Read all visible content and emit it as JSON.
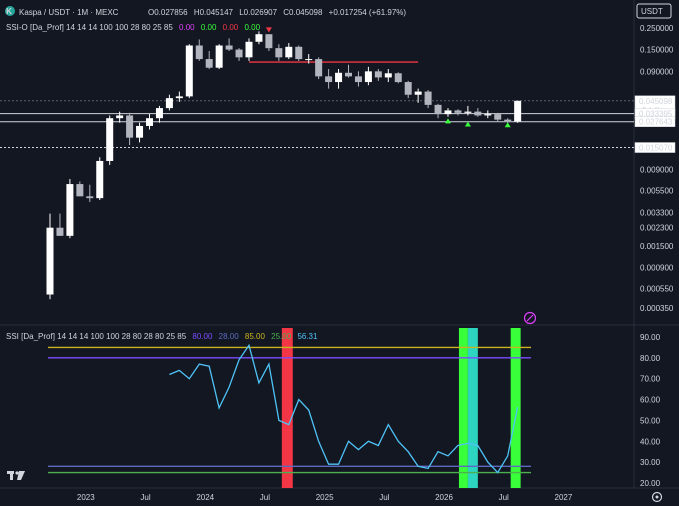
{
  "header": {
    "symbol": "Kaspa / USDT · 1M · MEXC",
    "ohlc": {
      "o": "O0.027856",
      "h": "H0.045147",
      "l": "L0.026907",
      "c": "C0.045098",
      "chg": "+0.017254 (+61.97%)"
    },
    "indicator_label": "SSI-O [Da_Prof] 14 14 14 100 100 28 80 25 85",
    "indicator_values": [
      "0.00",
      "0.00",
      "0.00",
      "0.00"
    ],
    "currency": "USDT"
  },
  "colors": {
    "bg": "#131722",
    "up": "#ffffff",
    "down": "#b2b5be",
    "osc": "#4fc3f7",
    "line80": "#7c4dff",
    "line28": "#5c6bc0",
    "line85": "#c8b41e",
    "line25": "#4caf50",
    "red": "#f23645",
    "green": "#38ff3a",
    "teal": "#2dd4bf"
  },
  "chart_data": [
    {
      "type": "candlestick",
      "scale": "log",
      "price_ticks": [
        "0.250000",
        "0.150000",
        "0.090000",
        "0.033395",
        "0.027643",
        "0.015070",
        "0.009000",
        "0.005500",
        "0.003300",
        "0.002300",
        "0.001500",
        "0.000900",
        "0.000550",
        "0.000350"
      ],
      "last_price": "0.045098",
      "countdown": "9d 4h",
      "x_labels": [
        "2023",
        "Jul",
        "2024",
        "Jul",
        "2025",
        "Jul",
        "2026",
        "Jul",
        "2027"
      ],
      "candles": [
        {
          "o": 0.00048,
          "h": 0.0032,
          "l": 0.00043,
          "c": 0.0023
        },
        {
          "o": 0.0023,
          "h": 0.0032,
          "l": 0.0019,
          "c": 0.0019
        },
        {
          "o": 0.0019,
          "h": 0.0072,
          "l": 0.0018,
          "c": 0.0064
        },
        {
          "o": 0.0064,
          "h": 0.0068,
          "l": 0.0048,
          "c": 0.0048
        },
        {
          "o": 0.0048,
          "h": 0.0063,
          "l": 0.0042,
          "c": 0.0046
        },
        {
          "o": 0.0046,
          "h": 0.012,
          "l": 0.0044,
          "c": 0.011
        },
        {
          "o": 0.011,
          "h": 0.032,
          "l": 0.01,
          "c": 0.03
        },
        {
          "o": 0.03,
          "h": 0.035,
          "l": 0.027,
          "c": 0.032
        },
        {
          "o": 0.032,
          "h": 0.034,
          "l": 0.016,
          "c": 0.019
        },
        {
          "o": 0.019,
          "h": 0.027,
          "l": 0.017,
          "c": 0.025
        },
        {
          "o": 0.025,
          "h": 0.033,
          "l": 0.023,
          "c": 0.03
        },
        {
          "o": 0.03,
          "h": 0.04,
          "l": 0.027,
          "c": 0.038
        },
        {
          "o": 0.038,
          "h": 0.052,
          "l": 0.036,
          "c": 0.048
        },
        {
          "o": 0.048,
          "h": 0.056,
          "l": 0.044,
          "c": 0.05
        },
        {
          "o": 0.05,
          "h": 0.17,
          "l": 0.048,
          "c": 0.165
        },
        {
          "o": 0.165,
          "h": 0.19,
          "l": 0.115,
          "c": 0.12
        },
        {
          "o": 0.12,
          "h": 0.145,
          "l": 0.095,
          "c": 0.098
        },
        {
          "o": 0.098,
          "h": 0.17,
          "l": 0.095,
          "c": 0.165
        },
        {
          "o": 0.165,
          "h": 0.195,
          "l": 0.145,
          "c": 0.15
        },
        {
          "o": 0.15,
          "h": 0.155,
          "l": 0.115,
          "c": 0.125
        },
        {
          "o": 0.125,
          "h": 0.195,
          "l": 0.115,
          "c": 0.18
        },
        {
          "o": 0.18,
          "h": 0.23,
          "l": 0.17,
          "c": 0.215
        },
        {
          "o": 0.215,
          "h": 0.215,
          "l": 0.145,
          "c": 0.155
        },
        {
          "o": 0.155,
          "h": 0.17,
          "l": 0.115,
          "c": 0.125
        },
        {
          "o": 0.125,
          "h": 0.175,
          "l": 0.12,
          "c": 0.16
        },
        {
          "o": 0.16,
          "h": 0.165,
          "l": 0.115,
          "c": 0.12
        },
        {
          "o": 0.12,
          "h": 0.135,
          "l": 0.108,
          "c": 0.12
        },
        {
          "o": 0.12,
          "h": 0.125,
          "l": 0.075,
          "c": 0.08
        },
        {
          "o": 0.08,
          "h": 0.095,
          "l": 0.06,
          "c": 0.07
        },
        {
          "o": 0.07,
          "h": 0.095,
          "l": 0.06,
          "c": 0.087
        },
        {
          "o": 0.087,
          "h": 0.105,
          "l": 0.078,
          "c": 0.08
        },
        {
          "o": 0.08,
          "h": 0.09,
          "l": 0.063,
          "c": 0.07
        },
        {
          "o": 0.07,
          "h": 0.1,
          "l": 0.065,
          "c": 0.09
        },
        {
          "o": 0.09,
          "h": 0.095,
          "l": 0.072,
          "c": 0.078
        },
        {
          "o": 0.078,
          "h": 0.095,
          "l": 0.07,
          "c": 0.086
        },
        {
          "o": 0.086,
          "h": 0.088,
          "l": 0.068,
          "c": 0.07
        },
        {
          "o": 0.07,
          "h": 0.072,
          "l": 0.048,
          "c": 0.052
        },
        {
          "o": 0.052,
          "h": 0.06,
          "l": 0.043,
          "c": 0.056
        },
        {
          "o": 0.056,
          "h": 0.058,
          "l": 0.038,
          "c": 0.041
        },
        {
          "o": 0.041,
          "h": 0.042,
          "l": 0.03,
          "c": 0.033
        },
        {
          "o": 0.033,
          "h": 0.038,
          "l": 0.031,
          "c": 0.036
        },
        {
          "o": 0.036,
          "h": 0.037,
          "l": 0.032,
          "c": 0.034
        },
        {
          "o": 0.034,
          "h": 0.04,
          "l": 0.032,
          "c": 0.035
        },
        {
          "o": 0.035,
          "h": 0.038,
          "l": 0.031,
          "c": 0.032
        },
        {
          "o": 0.032,
          "h": 0.036,
          "l": 0.03,
          "c": 0.033
        },
        {
          "o": 0.033,
          "h": 0.034,
          "l": 0.028,
          "c": 0.029
        },
        {
          "o": 0.029,
          "h": 0.03,
          "l": 0.027,
          "c": 0.028
        },
        {
          "o": 0.0278,
          "h": 0.0451,
          "l": 0.0269,
          "c": 0.0451
        }
      ],
      "levels": [
        {
          "value": 0.112,
          "color": "#f23645",
          "from": 20,
          "to": 37
        },
        {
          "value": 0.0451,
          "color": "#5d606b",
          "dashed": true
        },
        {
          "value": 0.0334,
          "color": "#d1d4dc"
        },
        {
          "value": 0.0276,
          "color": "#d1d4dc"
        },
        {
          "value": 0.0151,
          "color": "#d1d4dc",
          "dashed": true
        }
      ],
      "markers": [
        {
          "i": 22,
          "kind": "down",
          "price": 0.235
        },
        {
          "i": 40,
          "kind": "up",
          "price": 0.0285
        },
        {
          "i": 42,
          "kind": "up",
          "price": 0.0265
        },
        {
          "i": 46,
          "kind": "up",
          "price": 0.026
        }
      ],
      "boxed_labels": [
        "0.045098",
        "0.033395",
        "0.027643",
        "0.015070"
      ]
    },
    {
      "type": "line",
      "label": "SSI [Da_Prof] 14 14 14 100 100 28 80 28 80 25 85",
      "params_colored": [
        {
          "text": "80.00",
          "color": "#7c4dff"
        },
        {
          "text": "28.00",
          "color": "#5c6bc0"
        },
        {
          "text": "85.00",
          "color": "#c8b41e"
        },
        {
          "text": "25.00",
          "color": "#4caf50"
        },
        {
          "text": "56.31",
          "color": "#4fc3f7"
        }
      ],
      "y_ticks": [
        "90.00",
        "80.00",
        "70.00",
        "60.00",
        "50.00",
        "40.00",
        "30.00",
        "20.00"
      ],
      "ylim": [
        20,
        90
      ],
      "hlines": [
        {
          "value": 85,
          "color": "#c8b41e"
        },
        {
          "value": 80,
          "color": "#7c4dff"
        },
        {
          "value": 28,
          "color": "#5c6bc0"
        },
        {
          "value": 25,
          "color": "#4caf50"
        }
      ],
      "start_index": 12,
      "values": [
        72,
        74,
        70,
        77,
        76,
        56,
        66,
        79,
        86,
        68,
        77,
        50,
        48,
        60,
        55,
        40,
        29,
        29,
        40,
        36,
        40,
        38,
        48,
        40,
        35,
        28,
        27,
        35,
        33,
        38,
        39,
        38,
        30,
        25,
        33,
        56.31
      ],
      "zones": [
        {
          "from": 23.3,
          "to": 24.4,
          "color": "#f23645"
        },
        {
          "from": 41.1,
          "to": 42.0,
          "color": "#38ff3a"
        },
        {
          "from": 42.0,
          "to": 43.0,
          "color": "#2dd4bf"
        },
        {
          "from": 46.3,
          "to": 47.3,
          "color": "#38ff3a"
        }
      ],
      "last_label": "56.31"
    }
  ]
}
